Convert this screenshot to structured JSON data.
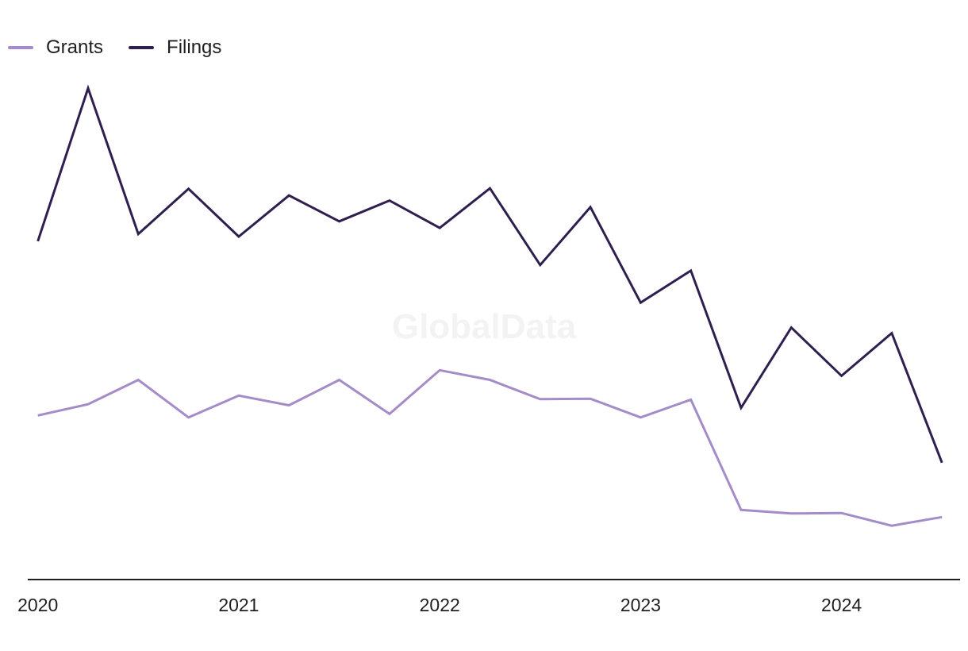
{
  "chart_data": {
    "type": "line",
    "legend_position": "top-left",
    "grid": false,
    "watermark": "GlobalData",
    "x": [
      2020.0,
      2020.25,
      2020.5,
      2020.75,
      2021.0,
      2021.25,
      2021.5,
      2021.75,
      2022.0,
      2022.25,
      2022.5,
      2022.75,
      2023.0,
      2023.25,
      2023.5,
      2023.75,
      2024.0,
      2024.25,
      2024.5
    ],
    "xlim": [
      2019.93,
      2024.59
    ],
    "x_ticks": [
      2020,
      2021,
      2022,
      2023,
      2024
    ],
    "x_tick_labels": [
      "2020",
      "2021",
      "2022",
      "2023",
      "2024"
    ],
    "ylim": [
      0,
      1000
    ],
    "series": [
      {
        "name": "Grants",
        "color": "#a48cc8",
        "values": [
          323,
          345,
          393,
          319,
          362,
          343,
          393,
          326,
          412,
          393,
          355,
          356,
          319,
          354,
          137,
          130,
          131,
          106,
          123
        ]
      },
      {
        "name": "Filings",
        "color": "#2e1f4f",
        "values": [
          666,
          967,
          680,
          769,
          675,
          756,
          705,
          746,
          692,
          770,
          619,
          733,
          545,
          608,
          338,
          496,
          401,
          485,
          230
        ]
      }
    ]
  }
}
